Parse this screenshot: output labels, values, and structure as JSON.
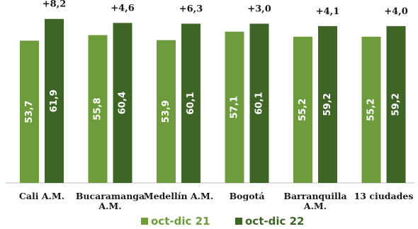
{
  "chart_data": {
    "type": "bar",
    "categories": [
      [
        "Cali A.M."
      ],
      [
        "Bucaramanga",
        "A.M."
      ],
      [
        "Medellín A.M."
      ],
      [
        "Bogotá"
      ],
      [
        "Barranquilla",
        "A.M."
      ],
      [
        "13 ciudades"
      ]
    ],
    "series": [
      {
        "name": "oct-dic 21",
        "values": [
          53.7,
          55.8,
          53.9,
          57.1,
          55.2,
          55.2
        ],
        "labels": [
          "53,7",
          "55,8",
          "53,9",
          "57,1",
          "55,2",
          "55,2"
        ],
        "color": "#6e9c3c"
      },
      {
        "name": "oct-dic 22",
        "values": [
          61.9,
          60.4,
          60.1,
          60.1,
          59.2,
          59.2
        ],
        "labels": [
          "61,9",
          "60,4",
          "60,1",
          "60,1",
          "59,2",
          "59,2"
        ],
        "color": "#3e6525"
      }
    ],
    "differences": [
      "+8,2",
      "+4,6",
      "+6,3",
      "+3,0",
      "+4,1",
      "+4,0"
    ],
    "ylim": [
      0,
      64.5
    ],
    "grid": false,
    "legend": "bottom",
    "title": "",
    "xlabel": "",
    "ylabel": ""
  }
}
